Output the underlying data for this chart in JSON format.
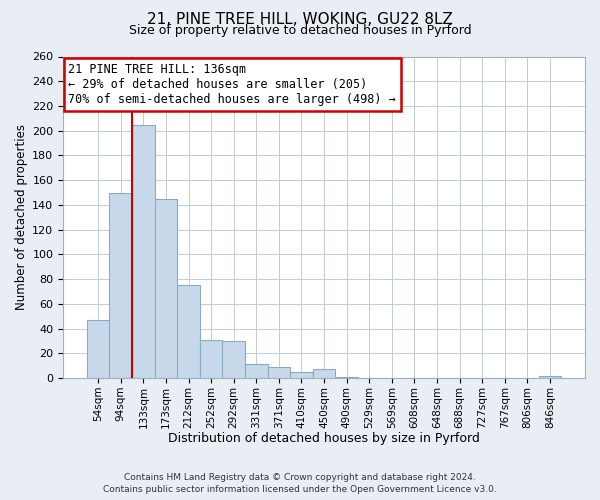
{
  "title_line1": "21, PINE TREE HILL, WOKING, GU22 8LZ",
  "title_line2": "Size of property relative to detached houses in Pyrford",
  "xlabel": "Distribution of detached houses by size in Pyrford",
  "ylabel": "Number of detached properties",
  "bar_labels": [
    "54sqm",
    "94sqm",
    "133sqm",
    "173sqm",
    "212sqm",
    "252sqm",
    "292sqm",
    "331sqm",
    "371sqm",
    "410sqm",
    "450sqm",
    "490sqm",
    "529sqm",
    "569sqm",
    "608sqm",
    "648sqm",
    "688sqm",
    "727sqm",
    "767sqm",
    "806sqm",
    "846sqm"
  ],
  "bar_values": [
    47,
    150,
    205,
    145,
    75,
    31,
    30,
    11,
    9,
    5,
    7,
    1,
    0,
    0,
    0,
    0,
    0,
    0,
    0,
    0,
    2
  ],
  "bar_color": "#c8d8eb",
  "bar_edge_color": "#8aaabf",
  "reference_line_color": "#cc0000",
  "ylim": [
    0,
    260
  ],
  "yticks": [
    0,
    20,
    40,
    60,
    80,
    100,
    120,
    140,
    160,
    180,
    200,
    220,
    240,
    260
  ],
  "annotation_title": "21 PINE TREE HILL: 136sqm",
  "annotation_line1": "← 29% of detached houses are smaller (205)",
  "annotation_line2": "70% of semi-detached houses are larger (498) →",
  "annotation_box_color": "#ffffff",
  "annotation_box_edge": "#cc0000",
  "footer_line1": "Contains HM Land Registry data © Crown copyright and database right 2024.",
  "footer_line2": "Contains public sector information licensed under the Open Government Licence v3.0.",
  "bg_color": "#e8eef4",
  "plot_bg_color": "#ffffff",
  "grid_color": "#c0ccd8"
}
